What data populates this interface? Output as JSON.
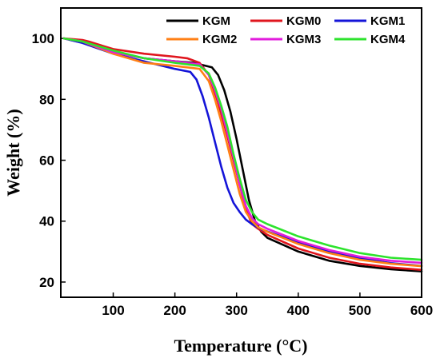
{
  "chart_data": {
    "type": "line",
    "xlabel": "Temperature (°C)",
    "ylabel": "Weight (%)",
    "xlim": [
      15,
      600
    ],
    "ylim": [
      15,
      110
    ],
    "xticks": [
      100,
      200,
      300,
      400,
      500,
      600
    ],
    "yticks": [
      20,
      40,
      60,
      80,
      100
    ],
    "legend_position": "top-right",
    "series": [
      {
        "name": "KGM",
        "color": "#000000",
        "x": [
          20,
          50,
          100,
          150,
          200,
          230,
          250,
          260,
          270,
          280,
          290,
          300,
          310,
          320,
          330,
          340,
          350,
          400,
          450,
          500,
          550,
          600
        ],
        "y": [
          100,
          99,
          95.5,
          93.5,
          92.5,
          92,
          91,
          90.5,
          88,
          83,
          76,
          67,
          57,
          47,
          40,
          36.5,
          34.5,
          30,
          27,
          25.3,
          24.2,
          23.5
        ]
      },
      {
        "name": "KGM0",
        "color": "#e0161e",
        "x": [
          20,
          50,
          60,
          100,
          150,
          200,
          220,
          240,
          255,
          270,
          285,
          300,
          315,
          325,
          335,
          350,
          400,
          450,
          500,
          550,
          600
        ],
        "y": [
          100,
          99.5,
          99,
          96.5,
          95,
          94,
          93.5,
          92,
          88,
          79,
          68,
          56,
          44,
          39,
          37.5,
          35.5,
          31,
          28,
          26,
          24.8,
          24
        ]
      },
      {
        "name": "KGM1",
        "color": "#1414d8",
        "x": [
          20,
          50,
          100,
          150,
          200,
          225,
          235,
          245,
          255,
          265,
          275,
          285,
          295,
          305,
          315,
          325,
          340,
          400,
          450,
          500,
          550,
          600
        ],
        "y": [
          100,
          98.5,
          95,
          92.5,
          90,
          89,
          86.5,
          81,
          74,
          66,
          58,
          51,
          46,
          43,
          40.5,
          39,
          37.3,
          33,
          30,
          27.8,
          26.2,
          25.3
        ]
      },
      {
        "name": "KGM2",
        "color": "#ff7f15",
        "x": [
          20,
          50,
          100,
          150,
          200,
          240,
          255,
          265,
          275,
          285,
          295,
          305,
          315,
          325,
          335,
          350,
          400,
          450,
          500,
          550,
          600
        ],
        "y": [
          100,
          99,
          95,
          92,
          91,
          90,
          86,
          80,
          73,
          65,
          57,
          49,
          43,
          40,
          38,
          36.5,
          32.5,
          29.5,
          27.3,
          26,
          25.2
        ]
      },
      {
        "name": "KGM3",
        "color": "#e21bdc",
        "x": [
          20,
          50,
          100,
          150,
          200,
          240,
          255,
          265,
          275,
          285,
          295,
          305,
          315,
          325,
          335,
          350,
          400,
          450,
          500,
          550,
          600
        ],
        "y": [
          100,
          99,
          95.5,
          93.5,
          92.5,
          91.5,
          88,
          83,
          77,
          69,
          61,
          52,
          45,
          41,
          39,
          37.5,
          33.5,
          30.5,
          28.3,
          27,
          26.3
        ]
      },
      {
        "name": "KGM4",
        "color": "#2de32d",
        "x": [
          20,
          50,
          100,
          150,
          200,
          240,
          255,
          265,
          275,
          285,
          295,
          305,
          315,
          325,
          335,
          350,
          400,
          450,
          500,
          550,
          600
        ],
        "y": [
          100,
          99,
          96,
          93.5,
          92,
          91,
          88.5,
          84,
          78,
          71,
          62,
          54,
          47,
          43,
          40.5,
          39,
          35,
          32,
          29.5,
          28,
          27.3
        ]
      }
    ]
  }
}
